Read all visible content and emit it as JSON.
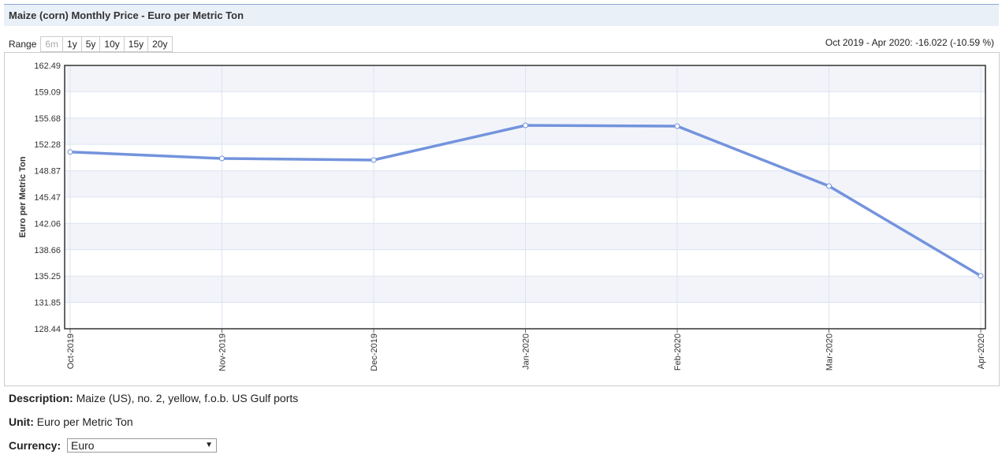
{
  "header": {
    "title": "Maize (corn) Monthly Price - Euro per Metric Ton"
  },
  "range": {
    "label": "Range",
    "buttons": [
      "6m",
      "1y",
      "5y",
      "10y",
      "15y",
      "20y"
    ],
    "summary": "Oct 2019 - Apr 2020: -16.022 (-10.59 %)"
  },
  "chart_data": {
    "type": "line",
    "y_label": "Euro per Metric Ton",
    "categories": [
      "Oct-2019",
      "Nov-2019",
      "Dec-2019",
      "Jan-2020",
      "Feb-2020",
      "Mar-2020",
      "Apr-2020"
    ],
    "values": [
      151.3,
      150.46,
      150.26,
      154.74,
      154.64,
      146.89,
      135.28
    ],
    "color": "#7393dc",
    "ylim": [
      128.44,
      162.49
    ],
    "yticks": [
      128.44,
      131.85,
      135.25,
      138.66,
      142.06,
      145.47,
      148.87,
      152.28,
      155.68,
      159.09,
      162.49
    ],
    "grid": true
  },
  "description": {
    "label": "Description:",
    "text": "Maize (US), no. 2, yellow, f.o.b. US Gulf ports"
  },
  "unit": {
    "label": "Unit:",
    "text": "Euro per Metric Ton"
  },
  "currency": {
    "label": "Currency:",
    "selected": "Euro"
  }
}
